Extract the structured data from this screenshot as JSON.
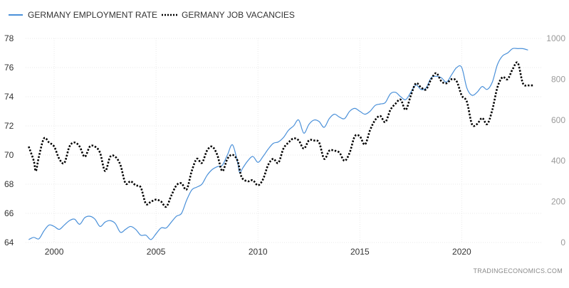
{
  "source_label": "TRADINGECONOMICS.COM",
  "chart_data": {
    "type": "line",
    "legend_position": "top-left",
    "grid": true,
    "x_ticks": [
      "2000",
      "2005",
      "2010",
      "2015",
      "2020"
    ],
    "x_range": [
      1998.6,
      2023.9
    ],
    "y_left": {
      "range": [
        64,
        78
      ],
      "ticks": [
        "64",
        "66",
        "68",
        "70",
        "72",
        "74",
        "76",
        "78"
      ]
    },
    "y_right": {
      "range": [
        0,
        1000
      ],
      "ticks": [
        "0",
        "200",
        "400",
        "600",
        "800",
        "1000"
      ]
    },
    "series": [
      {
        "name": "GERMANY EMPLOYMENT RATE",
        "axis": "left",
        "color": "#4a90d9",
        "style": "solid",
        "points": [
          [
            1998.75,
            64.2
          ],
          [
            1999.0,
            64.35
          ],
          [
            1999.25,
            64.25
          ],
          [
            1999.5,
            64.8
          ],
          [
            1999.75,
            65.2
          ],
          [
            2000.0,
            65.1
          ],
          [
            2000.25,
            64.9
          ],
          [
            2000.5,
            65.2
          ],
          [
            2000.75,
            65.5
          ],
          [
            2001.0,
            65.6
          ],
          [
            2001.25,
            65.25
          ],
          [
            2001.5,
            65.7
          ],
          [
            2001.75,
            65.8
          ],
          [
            2002.0,
            65.6
          ],
          [
            2002.25,
            65.1
          ],
          [
            2002.5,
            65.4
          ],
          [
            2002.75,
            65.5
          ],
          [
            2003.0,
            65.3
          ],
          [
            2003.25,
            64.7
          ],
          [
            2003.5,
            64.9
          ],
          [
            2003.75,
            65.1
          ],
          [
            2004.0,
            64.9
          ],
          [
            2004.25,
            64.5
          ],
          [
            2004.5,
            64.5
          ],
          [
            2004.75,
            64.2
          ],
          [
            2005.0,
            64.6
          ],
          [
            2005.25,
            65.0
          ],
          [
            2005.5,
            65.0
          ],
          [
            2005.75,
            65.4
          ],
          [
            2006.0,
            65.8
          ],
          [
            2006.25,
            66.0
          ],
          [
            2006.5,
            66.9
          ],
          [
            2006.75,
            67.6
          ],
          [
            2007.0,
            67.8
          ],
          [
            2007.25,
            68.0
          ],
          [
            2007.5,
            68.6
          ],
          [
            2007.75,
            69.0
          ],
          [
            2008.0,
            69.2
          ],
          [
            2008.25,
            69.3
          ],
          [
            2008.5,
            70.0
          ],
          [
            2008.75,
            70.7
          ],
          [
            2009.0,
            69.5
          ],
          [
            2009.1,
            68.8
          ],
          [
            2009.25,
            69.1
          ],
          [
            2009.5,
            69.6
          ],
          [
            2009.75,
            69.9
          ],
          [
            2010.0,
            69.5
          ],
          [
            2010.25,
            69.9
          ],
          [
            2010.5,
            70.4
          ],
          [
            2010.75,
            70.8
          ],
          [
            2011.0,
            70.9
          ],
          [
            2011.25,
            71.2
          ],
          [
            2011.5,
            71.7
          ],
          [
            2011.75,
            72.0
          ],
          [
            2012.0,
            72.4
          ],
          [
            2012.25,
            71.5
          ],
          [
            2012.5,
            72.1
          ],
          [
            2012.75,
            72.4
          ],
          [
            2013.0,
            72.3
          ],
          [
            2013.25,
            71.9
          ],
          [
            2013.5,
            72.5
          ],
          [
            2013.75,
            72.8
          ],
          [
            2014.0,
            72.6
          ],
          [
            2014.25,
            72.5
          ],
          [
            2014.5,
            73.0
          ],
          [
            2014.75,
            73.2
          ],
          [
            2015.0,
            73.0
          ],
          [
            2015.25,
            72.8
          ],
          [
            2015.5,
            73.0
          ],
          [
            2015.75,
            73.4
          ],
          [
            2016.0,
            73.5
          ],
          [
            2016.25,
            73.6
          ],
          [
            2016.5,
            74.2
          ],
          [
            2016.75,
            74.3
          ],
          [
            2017.0,
            74.0
          ],
          [
            2017.25,
            73.8
          ],
          [
            2017.5,
            74.3
          ],
          [
            2017.75,
            74.8
          ],
          [
            2018.0,
            74.5
          ],
          [
            2018.25,
            74.6
          ],
          [
            2018.5,
            75.3
          ],
          [
            2018.75,
            75.4
          ],
          [
            2019.0,
            75.3
          ],
          [
            2019.25,
            75.0
          ],
          [
            2019.5,
            75.5
          ],
          [
            2019.75,
            76.0
          ],
          [
            2020.0,
            76.0
          ],
          [
            2020.25,
            74.6
          ],
          [
            2020.5,
            74.1
          ],
          [
            2020.75,
            74.3
          ],
          [
            2021.0,
            74.7
          ],
          [
            2021.25,
            74.5
          ],
          [
            2021.5,
            75.0
          ],
          [
            2021.75,
            76.2
          ],
          [
            2022.0,
            76.8
          ],
          [
            2022.25,
            77.0
          ],
          [
            2022.5,
            77.3
          ],
          [
            2022.75,
            77.3
          ],
          [
            2023.0,
            77.3
          ],
          [
            2023.25,
            77.2
          ]
        ]
      },
      {
        "name": "GERMANY JOB VACANCIES",
        "axis": "right",
        "color": "#000000",
        "style": "dotted",
        "points": [
          [
            1998.75,
            470
          ],
          [
            1999.0,
            400
          ],
          [
            1999.1,
            350
          ],
          [
            1999.25,
            420
          ],
          [
            1999.5,
            510
          ],
          [
            1999.75,
            490
          ],
          [
            2000.0,
            470
          ],
          [
            2000.25,
            410
          ],
          [
            2000.5,
            390
          ],
          [
            2000.75,
            470
          ],
          [
            2001.0,
            490
          ],
          [
            2001.25,
            470
          ],
          [
            2001.5,
            420
          ],
          [
            2001.75,
            470
          ],
          [
            2002.0,
            470
          ],
          [
            2002.25,
            440
          ],
          [
            2002.5,
            350
          ],
          [
            2002.75,
            420
          ],
          [
            2003.0,
            420
          ],
          [
            2003.25,
            380
          ],
          [
            2003.5,
            290
          ],
          [
            2003.75,
            300
          ],
          [
            2004.0,
            280
          ],
          [
            2004.25,
            270
          ],
          [
            2004.5,
            190
          ],
          [
            2004.75,
            200
          ],
          [
            2005.0,
            210
          ],
          [
            2005.25,
            200
          ],
          [
            2005.5,
            175
          ],
          [
            2005.75,
            230
          ],
          [
            2006.0,
            280
          ],
          [
            2006.25,
            290
          ],
          [
            2006.5,
            260
          ],
          [
            2006.75,
            350
          ],
          [
            2007.0,
            410
          ],
          [
            2007.25,
            390
          ],
          [
            2007.5,
            450
          ],
          [
            2007.75,
            470
          ],
          [
            2008.0,
            430
          ],
          [
            2008.25,
            350
          ],
          [
            2008.5,
            410
          ],
          [
            2008.75,
            430
          ],
          [
            2009.0,
            400
          ],
          [
            2009.2,
            320
          ],
          [
            2009.5,
            300
          ],
          [
            2009.75,
            305
          ],
          [
            2010.0,
            280
          ],
          [
            2010.25,
            310
          ],
          [
            2010.5,
            380
          ],
          [
            2010.75,
            410
          ],
          [
            2011.0,
            390
          ],
          [
            2011.25,
            460
          ],
          [
            2011.5,
            490
          ],
          [
            2011.75,
            510
          ],
          [
            2012.0,
            500
          ],
          [
            2012.25,
            460
          ],
          [
            2012.5,
            500
          ],
          [
            2012.75,
            500
          ],
          [
            2013.0,
            490
          ],
          [
            2013.25,
            410
          ],
          [
            2013.5,
            450
          ],
          [
            2013.75,
            450
          ],
          [
            2014.0,
            440
          ],
          [
            2014.25,
            400
          ],
          [
            2014.5,
            440
          ],
          [
            2014.75,
            520
          ],
          [
            2015.0,
            520
          ],
          [
            2015.25,
            480
          ],
          [
            2015.5,
            550
          ],
          [
            2015.75,
            600
          ],
          [
            2016.0,
            620
          ],
          [
            2016.25,
            590
          ],
          [
            2016.5,
            650
          ],
          [
            2016.75,
            680
          ],
          [
            2017.0,
            700
          ],
          [
            2017.25,
            650
          ],
          [
            2017.5,
            720
          ],
          [
            2017.75,
            780
          ],
          [
            2018.0,
            760
          ],
          [
            2018.25,
            750
          ],
          [
            2018.5,
            800
          ],
          [
            2018.75,
            830
          ],
          [
            2019.0,
            790
          ],
          [
            2019.25,
            780
          ],
          [
            2019.5,
            800
          ],
          [
            2019.75,
            790
          ],
          [
            2020.0,
            720
          ],
          [
            2020.25,
            690
          ],
          [
            2020.5,
            580
          ],
          [
            2020.75,
            580
          ],
          [
            2021.0,
            610
          ],
          [
            2021.25,
            580
          ],
          [
            2021.5,
            650
          ],
          [
            2021.75,
            760
          ],
          [
            2022.0,
            810
          ],
          [
            2022.25,
            800
          ],
          [
            2022.5,
            850
          ],
          [
            2022.75,
            880
          ],
          [
            2023.0,
            780
          ],
          [
            2023.25,
            770
          ],
          [
            2023.5,
            770
          ]
        ]
      }
    ]
  }
}
